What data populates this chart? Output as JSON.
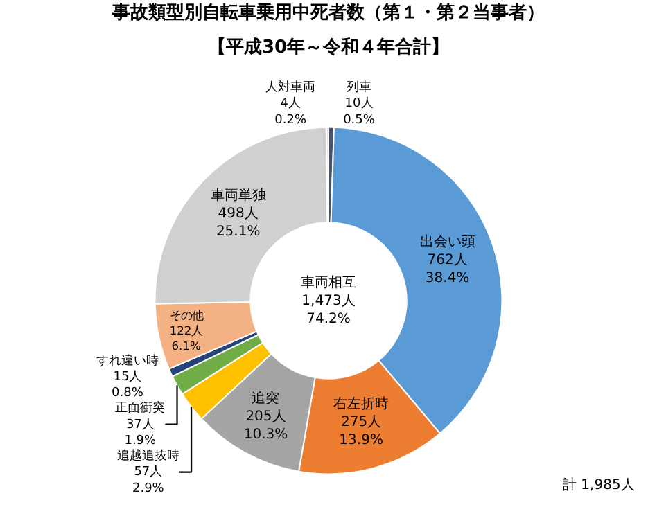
{
  "chart_data": {
    "type": "donut",
    "title": "事故類型別自転車乗用中死者数（第１・第２当事者）",
    "subtitle": "【平成30年～令和４年合計】",
    "categories": [
      "列車",
      "出会い頭",
      "右左折時",
      "追突",
      "追越追抜時",
      "正面衝突",
      "すれ違い時",
      "その他",
      "車両単独",
      "人対車両"
    ],
    "values": [
      10,
      762,
      275,
      205,
      57,
      37,
      15,
      122,
      498,
      4
    ],
    "colors": [
      "#44546a",
      "#5b9bd5",
      "#ed7d31",
      "#a5a5a5",
      "#ffc000",
      "#70ad47",
      "#264478",
      "#f4b183",
      "#d0d0d0",
      "#e7e6e6"
    ],
    "value_labels": [
      "10人\n0.5%",
      "762人\n38.4%",
      "275人\n13.9%",
      "205人\n10.3%",
      "57人\n2.9%",
      "37人\n1.9%",
      "15人\n0.8%",
      "122人\n6.1%",
      "498人\n25.1%",
      "4人\n0.2%"
    ],
    "annotations": [
      "車両相互\n1,473人\n74.2%",
      "計 1,985人"
    ],
    "legend": false
  }
}
